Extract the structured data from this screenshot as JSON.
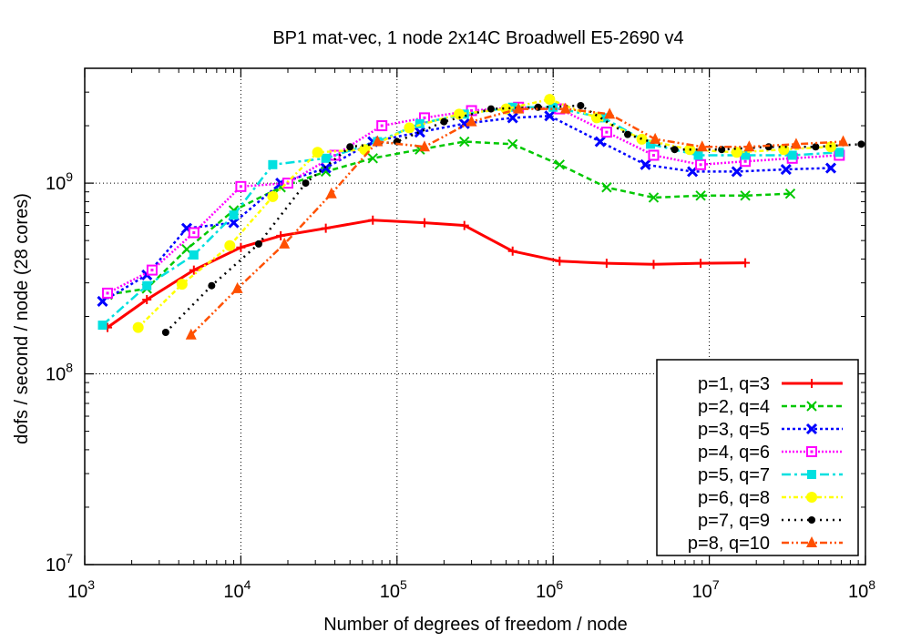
{
  "chart_data": {
    "type": "line",
    "title": "BP1 mat-vec, 1 node 2x14C Broadwell E5-2690 v4",
    "xlabel": "Number of degrees of freedom / node",
    "ylabel": "dofs / second / node (28 cores)",
    "xscale": "log",
    "yscale": "log",
    "xlim": [
      1000,
      100000000
    ],
    "ylim": [
      10000000,
      4000000000
    ],
    "grid": true,
    "legend_position": "bottom-right",
    "x_ticks": [
      {
        "value": 1000,
        "base": "10",
        "exp": "3"
      },
      {
        "value": 10000,
        "base": "10",
        "exp": "4"
      },
      {
        "value": 100000,
        "base": "10",
        "exp": "5"
      },
      {
        "value": 1000000,
        "base": "10",
        "exp": "6"
      },
      {
        "value": 10000000,
        "base": "10",
        "exp": "7"
      },
      {
        "value": 100000000,
        "base": "10",
        "exp": "8"
      }
    ],
    "y_ticks": [
      {
        "value": 10000000,
        "base": "10",
        "exp": "7"
      },
      {
        "value": 100000000,
        "base": "10",
        "exp": "8"
      },
      {
        "value": 1000000000,
        "base": "10",
        "exp": "9"
      }
    ],
    "series": [
      {
        "name": "p=1, q=3",
        "color": "#ff0000",
        "dash": "",
        "width": 3,
        "marker": "plus",
        "points": [
          [
            1400,
            175000000.0
          ],
          [
            2500,
            245000000.0
          ],
          [
            5000,
            350000000.0
          ],
          [
            10000,
            460000000.0
          ],
          [
            18000,
            530000000.0
          ],
          [
            35000,
            580000000.0
          ],
          [
            70000,
            640000000.0
          ],
          [
            150000,
            620000000.0
          ],
          [
            270000,
            600000000.0
          ],
          [
            550000,
            440000000.0
          ],
          [
            1100000,
            390000000.0
          ],
          [
            2200000,
            380000000.0
          ],
          [
            4400000,
            375000000.0
          ],
          [
            8800000,
            380000000.0
          ],
          [
            17000000,
            382000000.0
          ]
        ]
      },
      {
        "name": "p=2, q=4",
        "color": "#00c800",
        "dash": "6,4",
        "width": 2.5,
        "marker": "x",
        "points": [
          [
            1400,
            260000000.0
          ],
          [
            2500,
            280000000.0
          ],
          [
            4500,
            450000000.0
          ],
          [
            9000,
            720000000.0
          ],
          [
            18000,
            950000000.0
          ],
          [
            35000,
            1150000000.0
          ],
          [
            70000,
            1350000000.0
          ],
          [
            140000,
            1500000000.0
          ],
          [
            270000,
            1650000000.0
          ],
          [
            550000,
            1600000000.0
          ],
          [
            1100000,
            1250000000.0
          ],
          [
            2200000,
            950000000.0
          ],
          [
            4400000,
            840000000.0
          ],
          [
            8800000,
            860000000.0
          ],
          [
            17000000,
            860000000.0
          ],
          [
            33000000,
            880000000.0
          ]
        ]
      },
      {
        "name": "p=3, q=5",
        "color": "#0000ff",
        "dash": "3,3",
        "width": 2.5,
        "marker": "xsolid",
        "points": [
          [
            1300,
            240000000.0
          ],
          [
            2500,
            330000000.0
          ],
          [
            4500,
            580000000.0
          ],
          [
            9000,
            620000000.0
          ],
          [
            18000,
            1000000000.0
          ],
          [
            35000,
            1200000000.0
          ],
          [
            70000,
            1650000000.0
          ],
          [
            140000,
            1850000000.0
          ],
          [
            270000,
            2050000000.0
          ],
          [
            550000,
            2200000000.0
          ],
          [
            950000,
            2250000000.0
          ],
          [
            2000000,
            1650000000.0
          ],
          [
            3900000,
            1250000000.0
          ],
          [
            7800000,
            1150000000.0
          ],
          [
            15000000,
            1150000000.0
          ],
          [
            31000000,
            1180000000.0
          ],
          [
            60000000,
            1200000000.0
          ]
        ]
      },
      {
        "name": "p=4, q=6",
        "color": "#ff00ff",
        "dash": "2,2",
        "width": 2.5,
        "marker": "square",
        "points": [
          [
            1400,
            265000000.0
          ],
          [
            2700,
            350000000.0
          ],
          [
            5000,
            550000000.0
          ],
          [
            10000,
            960000000.0
          ],
          [
            20000,
            1000000000.0
          ],
          [
            40000,
            1400000000.0
          ],
          [
            80000,
            2000000000.0
          ],
          [
            150000,
            2200000000.0
          ],
          [
            300000,
            2400000000.0
          ],
          [
            600000,
            2500000000.0
          ],
          [
            1100000,
            2450000000.0
          ],
          [
            2200000,
            1850000000.0
          ],
          [
            4400000,
            1400000000.0
          ],
          [
            8800000,
            1250000000.0
          ],
          [
            17000000,
            1300000000.0
          ],
          [
            34000000,
            1350000000.0
          ],
          [
            68000000,
            1400000000.0
          ]
        ]
      },
      {
        "name": "p=5, q=7",
        "color": "#00e0e0",
        "dash": "10,4,3,4",
        "width": 2.5,
        "marker": "squarefill",
        "points": [
          [
            1300,
            180000000.0
          ],
          [
            2500,
            290000000.0
          ],
          [
            5000,
            420000000.0
          ],
          [
            9000,
            680000000.0
          ],
          [
            16000,
            1250000000.0
          ],
          [
            35000,
            1350000000.0
          ],
          [
            75000,
            1650000000.0
          ],
          [
            140000,
            2050000000.0
          ],
          [
            270000,
            2300000000.0
          ],
          [
            550000,
            2500000000.0
          ],
          [
            1000000,
            2500000000.0
          ],
          [
            2100000,
            2200000000.0
          ],
          [
            4200000,
            1600000000.0
          ],
          [
            8500000,
            1400000000.0
          ],
          [
            17000000,
            1400000000.0
          ],
          [
            34000000,
            1400000000.0
          ],
          [
            68000000,
            1450000000.0
          ]
        ]
      },
      {
        "name": "p=6, q=8",
        "color": "#ffff00",
        "dash": "5,3,2,3",
        "width": 2.5,
        "marker": "circle",
        "points": [
          [
            2200,
            175000000.0
          ],
          [
            4200,
            295000000.0
          ],
          [
            8500,
            470000000.0
          ],
          [
            16000,
            850000000.0
          ],
          [
            31000,
            1450000000.0
          ],
          [
            62000,
            1500000000.0
          ],
          [
            120000,
            1950000000.0
          ],
          [
            250000,
            2300000000.0
          ],
          [
            500000,
            2450000000.0
          ],
          [
            950000,
            2750000000.0
          ],
          [
            1900000,
            2200000000.0
          ],
          [
            3700000,
            1700000000.0
          ],
          [
            7500000,
            1500000000.0
          ],
          [
            15000000,
            1450000000.0
          ],
          [
            30000000,
            1500000000.0
          ],
          [
            60000000,
            1550000000.0
          ]
        ]
      },
      {
        "name": "p=7, q=9",
        "color": "#000000",
        "dash": "2,5",
        "width": 2.5,
        "marker": "dot",
        "points": [
          [
            3300,
            165000000.0
          ],
          [
            6500,
            290000000.0
          ],
          [
            13000,
            480000000.0
          ],
          [
            26000,
            1000000000.0
          ],
          [
            50000,
            1550000000.0
          ],
          [
            100000,
            1650000000.0
          ],
          [
            200000,
            2100000000.0
          ],
          [
            400000,
            2450000000.0
          ],
          [
            800000,
            2500000000.0
          ],
          [
            1500000,
            2550000000.0
          ],
          [
            3000000,
            1800000000.0
          ],
          [
            6000000,
            1500000000.0
          ],
          [
            12000000,
            1500000000.0
          ],
          [
            24000000,
            1550000000.0
          ],
          [
            48000000,
            1550000000.0
          ],
          [
            94000000,
            1600000000.0
          ]
        ]
      },
      {
        "name": "p=8, q=10",
        "color": "#ff5000",
        "dash": "8,3,2,3,2,3",
        "width": 2.5,
        "marker": "triangle",
        "points": [
          [
            4800,
            160000000.0
          ],
          [
            9500,
            280000000.0
          ],
          [
            19000,
            480000000.0
          ],
          [
            38000,
            880000000.0
          ],
          [
            75000,
            1650000000.0
          ],
          [
            150000,
            1550000000.0
          ],
          [
            300000,
            2100000000.0
          ],
          [
            600000,
            2450000000.0
          ],
          [
            1200000,
            2450000000.0
          ],
          [
            2300000,
            2300000000.0
          ],
          [
            4500000,
            1700000000.0
          ],
          [
            9000000,
            1550000000.0
          ],
          [
            18000000,
            1550000000.0
          ],
          [
            36000000,
            1600000000.0
          ],
          [
            72000000,
            1650000000.0
          ]
        ]
      }
    ]
  }
}
